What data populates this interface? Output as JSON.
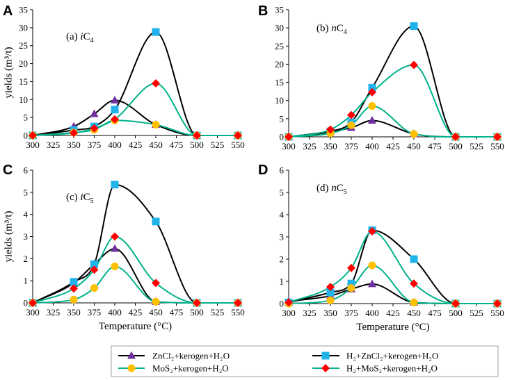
{
  "legend": [
    {
      "label": "ZnCl₂+kerogen+H₂O",
      "line_color": "#000000",
      "marker": "triangle",
      "marker_color": "#7030a0"
    },
    {
      "label": "H₂+ZnCl₂+kerogen+H₂O",
      "line_color": "#000000",
      "marker": "square",
      "marker_color": "#1fb3ea"
    },
    {
      "label": "MoS₂+kerogen+H₂O",
      "line_color": "#00b28a",
      "marker": "circle",
      "marker_color": "#ffc000"
    },
    {
      "label": "H₂+MoS₂+kerogen+H₂O",
      "line_color": "#00b28a",
      "marker": "diamond",
      "marker_color": "#ff0000"
    }
  ],
  "chart_data": [
    {
      "type": "line",
      "panel_letter": "A",
      "title_prefix": "(a) ",
      "title_italic": "i",
      "title_main": "C",
      "title_sub": "4",
      "xlabel": "",
      "ylabel": "yields (m³/t)",
      "x": [
        300,
        350,
        375,
        400,
        450,
        500,
        550
      ],
      "xlim": [
        300,
        550
      ],
      "xticks": [
        300,
        325,
        350,
        375,
        400,
        425,
        450,
        475,
        500,
        525,
        550
      ],
      "ylim": [
        0,
        35
      ],
      "yticks": [
        0,
        5,
        10,
        15,
        20,
        25,
        30,
        35
      ],
      "series": [
        {
          "name": "ZnCl₂+kerogen+H₂O",
          "values": [
            0,
            2.5,
            6,
            9.8,
            3,
            0,
            0
          ]
        },
        {
          "name": "H₂+ZnCl₂+kerogen+H₂O",
          "values": [
            0,
            1.5,
            2.5,
            7.2,
            28.8,
            0,
            0
          ]
        },
        {
          "name": "MoS₂+kerogen+H₂O",
          "values": [
            0,
            0.8,
            1.6,
            4.2,
            3,
            0,
            0
          ]
        },
        {
          "name": "H₂+MoS₂+kerogen+H₂O",
          "values": [
            0,
            0.7,
            2,
            4.5,
            14.5,
            0,
            0
          ]
        }
      ]
    },
    {
      "type": "line",
      "panel_letter": "B",
      "title_prefix": "(b) ",
      "title_italic": "n",
      "title_main": "C",
      "title_sub": "4",
      "xlabel": "",
      "ylabel": "",
      "x": [
        300,
        350,
        375,
        400,
        450,
        500,
        550
      ],
      "xlim": [
        300,
        550
      ],
      "xticks": [
        300,
        325,
        350,
        375,
        400,
        425,
        450,
        475,
        500,
        525,
        550
      ],
      "ylim": [
        0,
        35
      ],
      "yticks": [
        0,
        5,
        10,
        15,
        20,
        25,
        30,
        35
      ],
      "series": [
        {
          "name": "ZnCl₂+kerogen+H₂O",
          "values": [
            0,
            1.5,
            2.5,
            4.5,
            0.8,
            0,
            0
          ]
        },
        {
          "name": "H₂+ZnCl₂+kerogen+H₂O",
          "values": [
            0,
            1.5,
            4,
            13.5,
            30.5,
            0,
            0
          ]
        },
        {
          "name": "MoS₂+kerogen+H₂O",
          "values": [
            0,
            1,
            3.2,
            8.5,
            0.8,
            0,
            0
          ]
        },
        {
          "name": "H₂+MoS₂+kerogen+H₂O",
          "values": [
            0,
            2,
            6,
            12.3,
            19.8,
            0,
            0
          ]
        }
      ]
    },
    {
      "type": "line",
      "panel_letter": "C",
      "title_prefix": "(c) ",
      "title_italic": "i",
      "title_main": "C",
      "title_sub": "5",
      "xlabel": "Temperature  (°C)",
      "ylabel": "yields (m³/t)",
      "x": [
        300,
        350,
        375,
        400,
        450,
        500,
        550
      ],
      "xlim": [
        300,
        550
      ],
      "xticks": [
        300,
        325,
        350,
        375,
        400,
        425,
        450,
        475,
        500,
        525,
        550
      ],
      "ylim": [
        0,
        6
      ],
      "yticks": [
        0,
        1,
        2,
        3,
        4,
        5,
        6
      ],
      "series": [
        {
          "name": "ZnCl₂+kerogen+H₂O",
          "values": [
            0,
            0.9,
            1.75,
            2.45,
            0.05,
            0,
            0
          ]
        },
        {
          "name": "H₂+ZnCl₂+kerogen+H₂O",
          "values": [
            0,
            0.95,
            1.75,
            5.35,
            3.68,
            0,
            0
          ]
        },
        {
          "name": "MoS₂+kerogen+H₂O",
          "values": [
            0,
            0.15,
            0.67,
            1.65,
            0.05,
            0,
            0
          ]
        },
        {
          "name": "H₂+MoS₂+kerogen+H₂O",
          "values": [
            0,
            0.65,
            1.5,
            3,
            0.9,
            0,
            0
          ]
        }
      ]
    },
    {
      "type": "line",
      "panel_letter": "D",
      "title_prefix": "(d) ",
      "title_italic": "n",
      "title_main": "C",
      "title_sub": "5",
      "xlabel": "Temperature  (°C)",
      "ylabel": "",
      "x": [
        300,
        350,
        375,
        400,
        450,
        500,
        550
      ],
      "xlim": [
        300,
        550
      ],
      "xticks": [
        300,
        325,
        350,
        375,
        400,
        425,
        450,
        475,
        500,
        525,
        550
      ],
      "ylim": [
        0,
        6
      ],
      "yticks": [
        0,
        1,
        2,
        3,
        4,
        5,
        6
      ],
      "series": [
        {
          "name": "ZnCl₂+kerogen+H₂O",
          "values": [
            0.1,
            0.35,
            0.65,
            0.88,
            0.05,
            0,
            0
          ]
        },
        {
          "name": "H₂+ZnCl₂+kerogen+H₂O",
          "values": [
            0.05,
            0.5,
            0.9,
            3.3,
            2,
            0,
            0
          ]
        },
        {
          "name": "MoS₂+kerogen+H₂O",
          "values": [
            0,
            0.15,
            0.7,
            1.72,
            0.05,
            0,
            0
          ]
        },
        {
          "name": "H₂+MoS₂+kerogen+H₂O",
          "values": [
            0.05,
            0.75,
            1.6,
            3.25,
            0.9,
            0,
            0
          ]
        }
      ]
    }
  ]
}
